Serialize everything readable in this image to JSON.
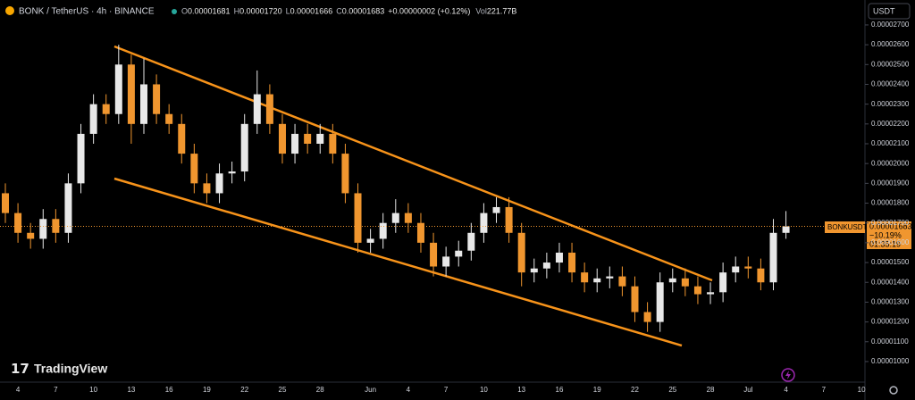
{
  "header": {
    "symbol": "BONK / TetherUS · 4h · BINANCE",
    "fields": [
      {
        "label": "O",
        "value": "0.00001681"
      },
      {
        "label": "H",
        "value": "0.00001720"
      },
      {
        "label": "L",
        "value": "0.00001666"
      },
      {
        "label": "C",
        "value": "0.00001683"
      }
    ],
    "change": "+0.00000002 (+0.12%)",
    "volume": {
      "label": "Vol",
      "value": "221.77B"
    }
  },
  "toolbar": {
    "currency": "USDT",
    "brand": "TradingView"
  },
  "price_label": {
    "symbol": "BONKUSDT",
    "price": "0.00001683",
    "change": "−10.19%",
    "countdown": "01:35:19"
  },
  "chart_data": {
    "type": "candlestick",
    "up_color": "#e8e8e8",
    "down_color": "#f0962f",
    "categories": [
      null,
      "4",
      null,
      null,
      "7",
      null,
      null,
      "10",
      null,
      null,
      "13",
      null,
      null,
      "16",
      null,
      null,
      "19",
      null,
      null,
      "22",
      null,
      null,
      "25",
      null,
      null,
      "28",
      null,
      null,
      null,
      "Jun",
      null,
      null,
      "4",
      null,
      null,
      "7",
      null,
      null,
      "10",
      null,
      null,
      "13",
      null,
      null,
      "16",
      null,
      null,
      "19",
      null,
      null,
      "22",
      null,
      null,
      "25",
      null,
      null,
      "28",
      null,
      null,
      "Jul",
      null,
      null,
      "4",
      null,
      null,
      "7",
      null,
      null,
      "10"
    ],
    "open": [
      1.85e-05,
      1.75e-05,
      1.65e-05,
      1.62e-05,
      1.72e-05,
      1.65e-05,
      1.9e-05,
      2.15e-05,
      2.3e-05,
      2.25e-05,
      2.5e-05,
      2.2e-05,
      2.4e-05,
      2.25e-05,
      2.2e-05,
      2.05e-05,
      1.9e-05,
      1.85e-05,
      1.95e-05,
      1.96e-05,
      2.2e-05,
      2.35e-05,
      2.2e-05,
      2.05e-05,
      2.15e-05,
      2.1e-05,
      2.15e-05,
      2.05e-05,
      1.85e-05,
      1.6e-05,
      1.62e-05,
      1.7e-05,
      1.75e-05,
      1.7e-05,
      1.6e-05,
      1.48e-05,
      1.53e-05,
      1.56e-05,
      1.65e-05,
      1.75e-05,
      1.78e-05,
      1.65e-05,
      1.45e-05,
      1.47e-05,
      1.5e-05,
      1.55e-05,
      1.45e-05,
      1.4e-05,
      1.42e-05,
      1.43e-05,
      1.38e-05,
      1.25e-05,
      1.2e-05,
      1.4e-05,
      1.42e-05,
      1.38e-05,
      1.34e-05,
      1.35e-05,
      1.45e-05,
      1.48e-05,
      1.47e-05,
      1.4e-05,
      1.65e-05,
      null,
      null,
      null,
      null,
      null,
      null
    ],
    "high": [
      1.9e-05,
      1.8e-05,
      1.7e-05,
      1.77e-05,
      1.77e-05,
      1.95e-05,
      2.2e-05,
      2.35e-05,
      2.35e-05,
      2.6e-05,
      2.55e-05,
      2.53e-05,
      2.45e-05,
      2.3e-05,
      2.25e-05,
      2.1e-05,
      1.95e-05,
      2e-05,
      2.01e-05,
      2.25e-05,
      2.47e-05,
      2.4e-05,
      2.25e-05,
      2.2e-05,
      2.2e-05,
      2.2e-05,
      2.2e-05,
      2.1e-05,
      1.9e-05,
      1.67e-05,
      1.75e-05,
      1.82e-05,
      1.8e-05,
      1.75e-05,
      1.65e-05,
      1.58e-05,
      1.61e-05,
      1.7e-05,
      1.8e-05,
      1.83e-05,
      1.83e-05,
      1.7e-05,
      1.52e-05,
      1.55e-05,
      1.6e-05,
      1.6e-05,
      1.5e-05,
      1.47e-05,
      1.48e-05,
      1.48e-05,
      1.43e-05,
      1.3e-05,
      1.45e-05,
      1.47e-05,
      1.47e-05,
      1.43e-05,
      1.4e-05,
      1.5e-05,
      1.53e-05,
      1.53e-05,
      1.52e-05,
      1.72e-05,
      1.76e-05,
      null,
      null,
      null,
      null,
      null,
      null
    ],
    "low": [
      1.7e-05,
      1.6e-05,
      1.57e-05,
      1.57e-05,
      1.6e-05,
      1.6e-05,
      1.85e-05,
      2.1e-05,
      2.2e-05,
      2.2e-05,
      2.1e-05,
      2.15e-05,
      2.2e-05,
      2.15e-05,
      2e-05,
      1.85e-05,
      1.8e-05,
      1.8e-05,
      1.9e-05,
      1.91e-05,
      2.15e-05,
      2.15e-05,
      2e-05,
      2e-05,
      2.05e-05,
      2.05e-05,
      2e-05,
      1.8e-05,
      1.55e-05,
      1.55e-05,
      1.57e-05,
      1.65e-05,
      1.65e-05,
      1.55e-05,
      1.43e-05,
      1.43e-05,
      1.48e-05,
      1.51e-05,
      1.6e-05,
      1.7e-05,
      1.6e-05,
      1.38e-05,
      1.4e-05,
      1.42e-05,
      1.45e-05,
      1.4e-05,
      1.35e-05,
      1.35e-05,
      1.37e-05,
      1.33e-05,
      1.2e-05,
      1.15e-05,
      1.15e-05,
      1.35e-05,
      1.33e-05,
      1.29e-05,
      1.29e-05,
      1.3e-05,
      1.4e-05,
      1.42e-05,
      1.36e-05,
      1.36e-05,
      1.62e-05,
      null,
      null,
      null,
      null,
      null,
      null
    ],
    "close": [
      1.75e-05,
      1.65e-05,
      1.62e-05,
      1.72e-05,
      1.65e-05,
      1.9e-05,
      2.15e-05,
      2.3e-05,
      2.25e-05,
      2.5e-05,
      2.2e-05,
      2.4e-05,
      2.25e-05,
      2.2e-05,
      2.05e-05,
      1.9e-05,
      1.85e-05,
      1.95e-05,
      1.96e-05,
      2.2e-05,
      2.35e-05,
      2.2e-05,
      2.05e-05,
      2.15e-05,
      2.1e-05,
      2.15e-05,
      2.05e-05,
      1.85e-05,
      1.6e-05,
      1.62e-05,
      1.7e-05,
      1.75e-05,
      1.7e-05,
      1.6e-05,
      1.48e-05,
      1.53e-05,
      1.56e-05,
      1.65e-05,
      1.75e-05,
      1.78e-05,
      1.65e-05,
      1.45e-05,
      1.47e-05,
      1.5e-05,
      1.55e-05,
      1.45e-05,
      1.4e-05,
      1.42e-05,
      1.43e-05,
      1.38e-05,
      1.25e-05,
      1.2e-05,
      1.4e-05,
      1.42e-05,
      1.38e-05,
      1.34e-05,
      1.35e-05,
      1.45e-05,
      1.48e-05,
      1.47e-05,
      1.4e-05,
      1.65e-05,
      1.683e-05,
      null,
      null,
      null,
      null,
      null,
      null
    ],
    "ylim": [
      8.96e-06,
      2.826e-05
    ],
    "yticks": [
      {
        "value": 1e-05,
        "label": "0.00001000"
      },
      {
        "value": 1.1e-05,
        "label": "0.00001100"
      },
      {
        "value": 1.2e-05,
        "label": "0.00001200"
      },
      {
        "value": 1.3e-05,
        "label": "0.00001300"
      },
      {
        "value": 1.4e-05,
        "label": "0.00001400"
      },
      {
        "value": 1.5e-05,
        "label": "0.00001500"
      },
      {
        "value": 1.6e-05,
        "label": "0.00001600"
      },
      {
        "value": 1.7e-05,
        "label": "0.00001700"
      },
      {
        "value": 1.8e-05,
        "label": "0.00001800"
      },
      {
        "value": 1.9e-05,
        "label": "0.00001900"
      },
      {
        "value": 2e-05,
        "label": "0.00002000"
      },
      {
        "value": 2.1e-05,
        "label": "0.00002100"
      },
      {
        "value": 2.2e-05,
        "label": "0.00002200"
      },
      {
        "value": 2.3e-05,
        "label": "0.00002300"
      },
      {
        "value": 2.4e-05,
        "label": "0.00002400"
      },
      {
        "value": 2.5e-05,
        "label": "0.00002500"
      },
      {
        "value": 2.6e-05,
        "label": "0.00002600"
      },
      {
        "value": 2.7e-05,
        "label": "0.00002700"
      }
    ],
    "grid": false
  }
}
